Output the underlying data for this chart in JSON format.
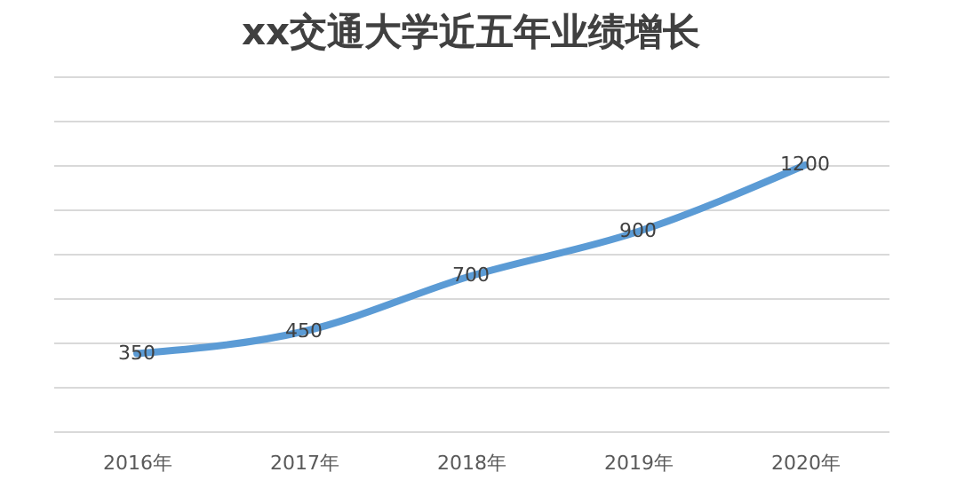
{
  "chart_data": {
    "type": "line",
    "title": "xx交通大学近五年业绩增长",
    "categories": [
      "2016年",
      "2017年",
      "2018年",
      "2019年",
      "2020年"
    ],
    "series": [
      {
        "color": "#5b9bd5",
        "values": [
          350,
          450,
          700,
          900,
          1200
        ]
      }
    ],
    "ylim": [
      0,
      1600
    ],
    "yticks": [
      {
        "value": 0,
        "label": null
      },
      {
        "value": 200,
        "label": null
      },
      {
        "value": 400,
        "label": null
      },
      {
        "value": 600,
        "label": null
      },
      {
        "value": 800,
        "label": null
      },
      {
        "value": 1000,
        "label": null
      },
      {
        "value": 1200,
        "label": null
      },
      {
        "value": 1400,
        "label": null
      },
      {
        "value": 1600,
        "label": null
      }
    ],
    "grid": "y",
    "data_labels": true,
    "marker": "none",
    "line_style": "solid"
  }
}
